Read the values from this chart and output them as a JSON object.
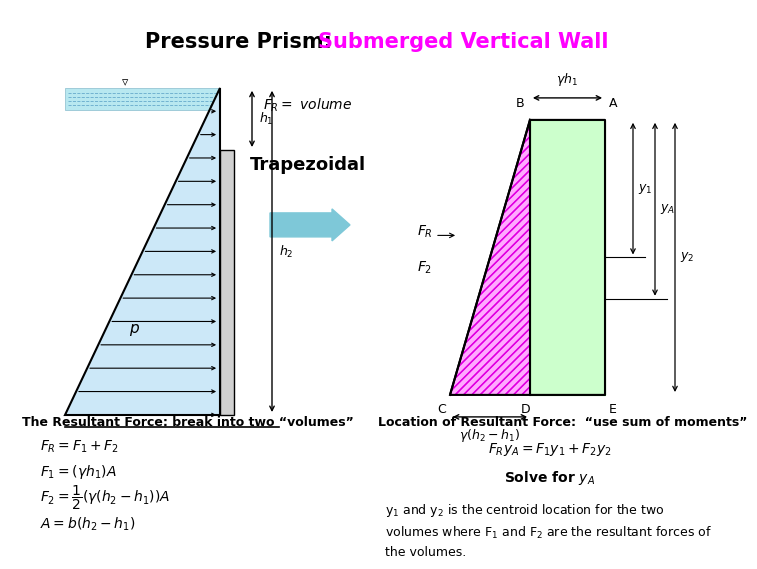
{
  "title_black": "Pressure Prism:  ",
  "title_magenta": "Submerged Vertical Wall",
  "title_fontsize": 15,
  "background_color": "#ffffff",
  "label_trapezoidal": "Trapezoidal",
  "label_resultant": "The Resultant Force: break into two “volumes”",
  "label_location": "Location of Resultant Force:  “use sum of moments”",
  "label_solve": "Solve for $y_A$",
  "label_description": "y$_1$ and y$_2$ is the centroid location for the two\nvolumes where F$_1$ and F$_2$ are the resultant forces of\nthe volumes.",
  "fr_volume_text": "$F_R =$ volume",
  "equations_left": [
    "$F_R = F_1 + F_2$",
    "$F_1 = (\\gamma h_1)A$",
    "$F_2 = \\dfrac{1}{2}(\\gamma(h_2 - h_1))A$",
    "$A = b(h_2 - h_1)$"
  ],
  "equation_moments": "$F_{R}y_A = F_1y_1 + F_2y_2$",
  "wall_color": "#c8c8c8",
  "pressure_fill": "#cce8f4",
  "water_color": "#b8e0ec",
  "pink_hatch": "#ff00ff",
  "green_hatch": "#228b22",
  "arrow_color": "#7ec8d8"
}
